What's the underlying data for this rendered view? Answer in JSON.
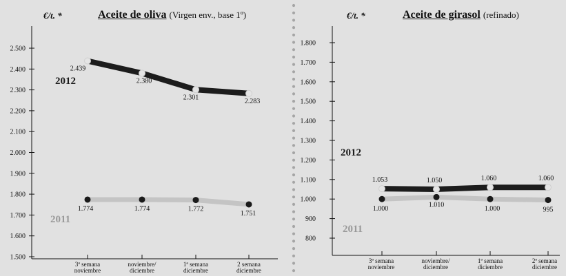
{
  "colors": {
    "background": "#e1e1e1",
    "series_2012": "#1c1c1c",
    "series_2011": "#c4c4c4",
    "label_2011": "#9a9a9a",
    "divider_dots": "#a5a5a5"
  },
  "chart_data": [
    {
      "type": "line",
      "title": "Aceite de oliva",
      "subtitle": "(Virgen env., base 1º)",
      "unit_label": "€/t. *",
      "categories": [
        [
          "3ª semana",
          "noviembre"
        ],
        [
          "noviembre/",
          "diciembre"
        ],
        [
          "1ª semana",
          "diciembre"
        ],
        [
          "2 semana",
          "diciembre"
        ]
      ],
      "y_ticks": [
        1500,
        1600,
        1700,
        1800,
        1900,
        2000,
        2100,
        2200,
        2300,
        2400,
        2500
      ],
      "y_tick_labels": [
        "1.500",
        "1.600",
        "1.700",
        "1.800",
        "1.900",
        "2.000",
        "2.100",
        "2.200",
        "2.300",
        "2.400",
        "2.500"
      ],
      "ylim": [
        1480,
        2600
      ],
      "grid": false,
      "series": [
        {
          "name": "2012",
          "values": [
            2439,
            2380,
            2301,
            2283
          ],
          "value_labels": [
            "2.439",
            "2.380",
            "2.301",
            "2.283"
          ]
        },
        {
          "name": "2011",
          "values": [
            1774,
            1774,
            1772,
            1751
          ],
          "value_labels": [
            "1.774",
            "1.774",
            "1.772",
            "1.751"
          ]
        }
      ]
    },
    {
      "type": "line",
      "title": "Aceite de girasol",
      "subtitle": "(refinado)",
      "unit_label": "€/t. *",
      "categories": [
        [
          "3ª semana",
          "noviembre"
        ],
        [
          "noviembre/",
          "diciembre"
        ],
        [
          "1ª semana",
          "diciembre"
        ],
        [
          "2ª semana",
          "diciembre"
        ]
      ],
      "y_ticks": [
        800,
        900,
        1000,
        1100,
        1200,
        1300,
        1400,
        1500,
        1600,
        1700,
        1800
      ],
      "y_tick_labels": [
        "800",
        "900",
        "1.000",
        "1.100",
        "1.200",
        "1.300",
        "1.400",
        "1.500",
        "1.600",
        "1.700",
        "1.800"
      ],
      "ylim": [
        720,
        1900
      ],
      "grid": false,
      "series": [
        {
          "name": "2012",
          "values": [
            1053,
            1050,
            1060,
            1060
          ],
          "value_labels": [
            "1.053",
            "1.050",
            "1.060",
            "1.060"
          ]
        },
        {
          "name": "2011",
          "values": [
            1000,
            1010,
            1000,
            995
          ],
          "value_labels": [
            "1.000",
            "1.010",
            "1.000",
            "995"
          ]
        }
      ]
    }
  ]
}
